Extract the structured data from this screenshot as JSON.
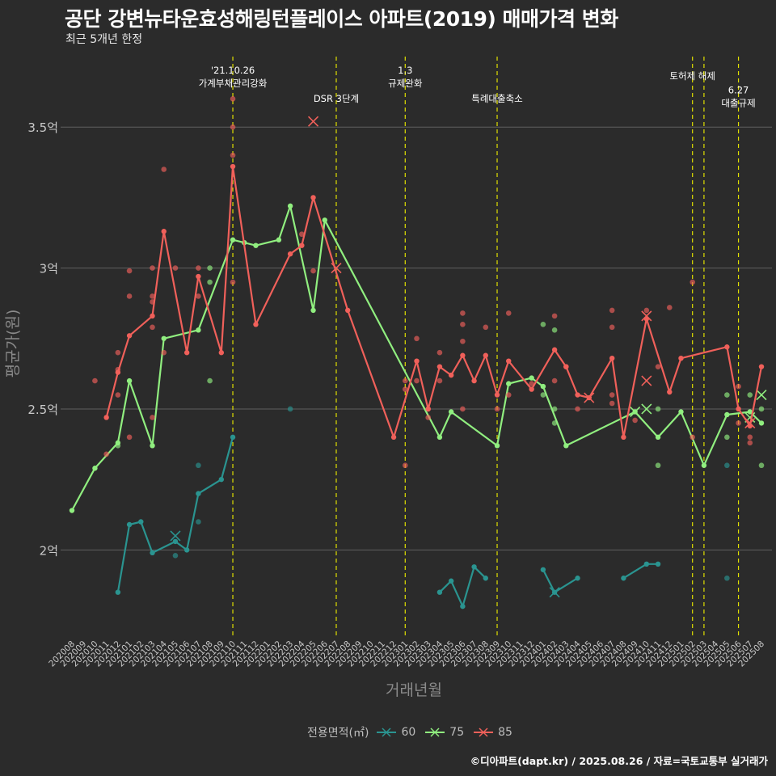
{
  "title": "공단 강변뉴타운효성해링턴플레이스 아파트(2019) 매매가격 변화",
  "subtitle": "최근 5개년 한정",
  "caption": "©디아파트(dapt.kr) / 2025.08.26 / 자료=국토교통부 실거래가",
  "colors": {
    "background": "#2b2b2b",
    "grid": "#5f5f5f",
    "axis_text": "#c9c9c9",
    "event_line": "#e0e000"
  },
  "chart_data": {
    "type": "line",
    "xlabel": "거래년월",
    "ylabel": "평균가(원)",
    "ylim": [
      1.7,
      3.75
    ],
    "yticks": [
      2,
      2.5,
      3,
      3.5
    ],
    "yticklabels": [
      "2억",
      "2.5억",
      "3억",
      "3.5억"
    ],
    "x_categories": [
      "202008",
      "202009",
      "202010",
      "202011",
      "202012",
      "202101",
      "202102",
      "202103",
      "202104",
      "202105",
      "202106",
      "202107",
      "202108",
      "202109",
      "202110",
      "202111",
      "202112",
      "202201",
      "202202",
      "202203",
      "202204",
      "202205",
      "202206",
      "202207",
      "202208",
      "202209",
      "202210",
      "202211",
      "202212",
      "202301",
      "202302",
      "202303",
      "202304",
      "202305",
      "202306",
      "202307",
      "202308",
      "202309",
      "202310",
      "202311",
      "202312",
      "202401",
      "202402",
      "202403",
      "202404",
      "202405",
      "202406",
      "202407",
      "202408",
      "202409",
      "202410",
      "202411",
      "202412",
      "202501",
      "202502",
      "202503",
      "202504",
      "202505",
      "202506",
      "202507",
      "202508"
    ],
    "legend_title": "전용면적(㎡)",
    "series": [
      {
        "name": "60",
        "color": "#2a9490",
        "points": [
          [
            "202012",
            1.85
          ],
          [
            "202101",
            2.09
          ],
          [
            "202102",
            2.1
          ],
          [
            "202103",
            1.99
          ],
          [
            "202105",
            2.03
          ],
          [
            "202106",
            2.0
          ],
          [
            "202107",
            2.2
          ],
          [
            "202109",
            2.25
          ],
          [
            "202110",
            2.4
          ]
        ],
        "points2": [
          [
            "202304",
            1.85
          ],
          [
            "202305",
            1.89
          ],
          [
            "202306",
            1.8
          ],
          [
            "202307",
            1.94
          ],
          [
            "202308",
            1.9
          ]
        ],
        "points3": [
          [
            "202401",
            1.93
          ],
          [
            "202402",
            1.85
          ],
          [
            "202404",
            1.9
          ]
        ],
        "points4": [
          [
            "202408",
            1.9
          ],
          [
            "202410",
            1.95
          ],
          [
            "202411",
            1.95
          ]
        ],
        "scatter": [
          [
            "202105",
            1.98
          ],
          [
            "202107",
            2.3
          ],
          [
            "202107",
            2.1
          ],
          [
            "202203",
            2.5
          ],
          [
            "202505",
            1.9
          ],
          [
            "202505",
            2.3
          ]
        ],
        "x_marks": [
          [
            "202105",
            2.05
          ],
          [
            "202402",
            1.85
          ]
        ]
      },
      {
        "name": "75",
        "color": "#90ee7f",
        "points": [
          [
            "202008",
            2.14
          ],
          [
            "202010",
            2.29
          ],
          [
            "202012",
            2.38
          ],
          [
            "202101",
            2.6
          ],
          [
            "202103",
            2.37
          ],
          [
            "202104",
            2.75
          ],
          [
            "202107",
            2.78
          ],
          [
            "202110",
            3.1
          ],
          [
            "202111",
            3.09
          ],
          [
            "202112",
            3.08
          ],
          [
            "202202",
            3.1
          ],
          [
            "202203",
            3.22
          ],
          [
            "202205",
            2.85
          ],
          [
            "202206",
            3.17
          ],
          [
            "202304",
            2.4
          ],
          [
            "202305",
            2.49
          ],
          [
            "202309",
            2.37
          ],
          [
            "202310",
            2.59
          ],
          [
            "202312",
            2.61
          ],
          [
            "202401",
            2.58
          ],
          [
            "202403",
            2.37
          ],
          [
            "202409",
            2.49
          ],
          [
            "202411",
            2.4
          ],
          [
            "202501",
            2.49
          ],
          [
            "202503",
            2.3
          ],
          [
            "202505",
            2.48
          ],
          [
            "202507",
            2.49
          ],
          [
            "202508",
            2.45
          ]
        ],
        "scatter": [
          [
            "202012",
            2.37
          ],
          [
            "202108",
            3.0
          ],
          [
            "202108",
            2.95
          ],
          [
            "202108",
            2.6
          ],
          [
            "202401",
            2.8
          ],
          [
            "202401",
            2.55
          ],
          [
            "202402",
            2.5
          ],
          [
            "202402",
            2.78
          ],
          [
            "202402",
            2.45
          ],
          [
            "202411",
            2.5
          ],
          [
            "202411",
            2.3
          ],
          [
            "202505",
            2.55
          ],
          [
            "202505",
            2.4
          ],
          [
            "202507",
            2.55
          ],
          [
            "202508",
            2.5
          ],
          [
            "202508",
            2.3
          ]
        ],
        "x_marks": [
          [
            "202409",
            2.49
          ],
          [
            "202410",
            2.5
          ],
          [
            "202507",
            2.47
          ],
          [
            "202508",
            2.55
          ]
        ]
      },
      {
        "name": "85",
        "color": "#f0605a",
        "points": [
          [
            "202011",
            2.47
          ],
          [
            "202012",
            2.63
          ],
          [
            "202101",
            2.76
          ],
          [
            "202103",
            2.83
          ],
          [
            "202104",
            3.13
          ],
          [
            "202106",
            2.7
          ],
          [
            "202107",
            2.97
          ],
          [
            "202109",
            2.7
          ],
          [
            "202110",
            3.36
          ],
          [
            "202112",
            2.8
          ],
          [
            "202203",
            3.05
          ],
          [
            "202204",
            3.08
          ],
          [
            "202205",
            3.25
          ],
          [
            "202208",
            2.85
          ],
          [
            "202212",
            2.4
          ],
          [
            "202302",
            2.67
          ],
          [
            "202303",
            2.5
          ],
          [
            "202304",
            2.65
          ],
          [
            "202305",
            2.62
          ],
          [
            "202306",
            2.69
          ],
          [
            "202307",
            2.6
          ],
          [
            "202308",
            2.69
          ],
          [
            "202309",
            2.55
          ],
          [
            "202310",
            2.67
          ],
          [
            "202312",
            2.57
          ],
          [
            "202402",
            2.71
          ],
          [
            "202403",
            2.65
          ],
          [
            "202404",
            2.55
          ],
          [
            "202405",
            2.54
          ],
          [
            "202407",
            2.68
          ],
          [
            "202408",
            2.4
          ],
          [
            "202410",
            2.82
          ],
          [
            "202412",
            2.56
          ],
          [
            "202501",
            2.68
          ],
          [
            "202505",
            2.72
          ],
          [
            "202506",
            2.5
          ],
          [
            "202507",
            2.44
          ],
          [
            "202508",
            2.65
          ]
        ],
        "scatter": [
          [
            "202010",
            2.6
          ],
          [
            "202011",
            2.34
          ],
          [
            "202012",
            2.7
          ],
          [
            "202012",
            2.64
          ],
          [
            "202012",
            2.55
          ],
          [
            "202101",
            2.99
          ],
          [
            "202101",
            2.9
          ],
          [
            "202101",
            2.4
          ],
          [
            "202103",
            3.0
          ],
          [
            "202103",
            2.9
          ],
          [
            "202103",
            2.88
          ],
          [
            "202103",
            2.79
          ],
          [
            "202103",
            2.47
          ],
          [
            "202104",
            3.35
          ],
          [
            "202104",
            2.7
          ],
          [
            "202105",
            3.0
          ],
          [
            "202107",
            3.0
          ],
          [
            "202107",
            2.9
          ],
          [
            "202110",
            3.6
          ],
          [
            "202110",
            3.5
          ],
          [
            "202110",
            3.4
          ],
          [
            "202110",
            2.95
          ],
          [
            "202204",
            3.12
          ],
          [
            "202205",
            2.99
          ],
          [
            "202301",
            2.6
          ],
          [
            "202301",
            2.57
          ],
          [
            "202301",
            2.3
          ],
          [
            "202302",
            2.75
          ],
          [
            "202302",
            2.6
          ],
          [
            "202303",
            2.5
          ],
          [
            "202303",
            2.47
          ],
          [
            "202304",
            2.7
          ],
          [
            "202304",
            2.6
          ],
          [
            "202306",
            2.84
          ],
          [
            "202306",
            2.8
          ],
          [
            "202306",
            2.74
          ],
          [
            "202306",
            2.5
          ],
          [
            "202308",
            2.79
          ],
          [
            "202309",
            2.5
          ],
          [
            "202310",
            2.84
          ],
          [
            "202310",
            2.55
          ],
          [
            "202312",
            2.59
          ],
          [
            "202402",
            2.83
          ],
          [
            "202402",
            2.6
          ],
          [
            "202403",
            2.65
          ],
          [
            "202404",
            2.5
          ],
          [
            "202407",
            2.85
          ],
          [
            "202407",
            2.79
          ],
          [
            "202407",
            2.55
          ],
          [
            "202407",
            2.52
          ],
          [
            "202409",
            2.46
          ],
          [
            "202410",
            2.85
          ],
          [
            "202411",
            2.65
          ],
          [
            "202412",
            2.86
          ],
          [
            "202502",
            2.95
          ],
          [
            "202502",
            2.4
          ],
          [
            "202506",
            2.58
          ],
          [
            "202506",
            2.45
          ],
          [
            "202507",
            2.4
          ],
          [
            "202507",
            2.38
          ]
        ],
        "x_marks": [
          [
            "202205",
            3.52
          ],
          [
            "202207",
            3.0
          ],
          [
            "202405",
            2.54
          ],
          [
            "202410",
            2.83
          ],
          [
            "202410",
            2.6
          ],
          [
            "202507",
            2.45
          ]
        ]
      }
    ],
    "events": [
      {
        "x": "202110",
        "label": "'21.10.26\n가계부채관리강화",
        "label_y": 3.69
      },
      {
        "x": "202207",
        "label": "DSR 3단계",
        "label_y": 3.59
      },
      {
        "x": "202301",
        "label": "1.3\n규제완화",
        "label_y": 3.69
      },
      {
        "x": "202309",
        "label": "특례대출축소",
        "label_y": 3.59
      },
      {
        "x": "202502",
        "label": "토허제 해제",
        "label_y": 3.67
      },
      {
        "x": "202503",
        "label": "",
        "label_y": 3.6
      },
      {
        "x": "202506",
        "label": "6.27\n대출규제",
        "label_y": 3.62
      }
    ]
  }
}
